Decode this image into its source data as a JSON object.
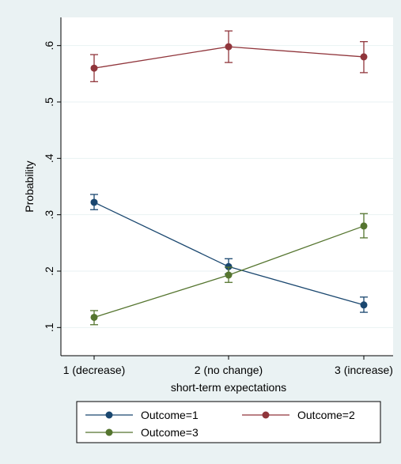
{
  "chart_data": {
    "type": "line",
    "title": "",
    "xlabel": "short-term expectations",
    "ylabel": "Probability",
    "categories": [
      "1 (decrease)",
      "2 (no change)",
      "3 (increase)"
    ],
    "ylim": [
      0.05,
      0.65
    ],
    "yticks": [
      0.1,
      0.2,
      0.3,
      0.4,
      0.5,
      0.6
    ],
    "ytick_labels": [
      ".1",
      ".2",
      ".3",
      ".4",
      ".5",
      ".6"
    ],
    "grid": "horizontal",
    "legend_position": "bottom",
    "series": [
      {
        "name": "Outcome=1",
        "color": "#1a476f",
        "values": [
          0.322,
          0.208,
          0.14
        ],
        "ci_low": [
          0.309,
          0.195,
          0.127
        ],
        "ci_high": [
          0.336,
          0.222,
          0.154
        ]
      },
      {
        "name": "Outcome=2",
        "color": "#90353b",
        "values": [
          0.56,
          0.598,
          0.58
        ],
        "ci_low": [
          0.536,
          0.57,
          0.552
        ],
        "ci_high": [
          0.584,
          0.626,
          0.607
        ]
      },
      {
        "name": "Outcome=3",
        "color": "#55752f",
        "values": [
          0.118,
          0.193,
          0.28
        ],
        "ci_low": [
          0.105,
          0.18,
          0.259
        ],
        "ci_high": [
          0.13,
          0.207,
          0.302
        ]
      }
    ]
  }
}
